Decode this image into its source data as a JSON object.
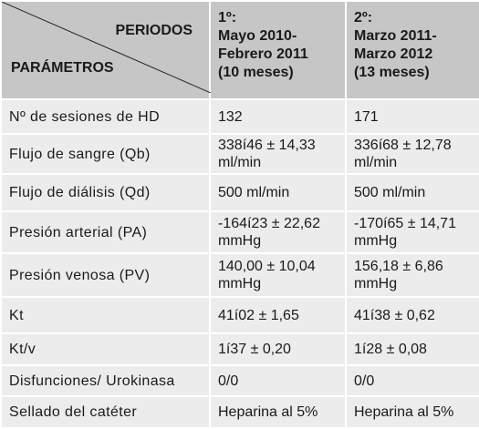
{
  "table": {
    "header": {
      "periods_label": "PERIODOS",
      "params_label": "PARÁMETROS",
      "columns": [
        [
          "1º:",
          "Mayo 2010-",
          "Febrero 2011",
          "(10 meses)"
        ],
        [
          "2º:",
          "Marzo 2011-",
          "Marzo 2012",
          "(13 meses)"
        ]
      ]
    },
    "rows": [
      [
        "Nº de sesiones de HD",
        "132",
        "171"
      ],
      [
        "Flujo de sangre (Qb)",
        "338í46 ± 14,33 ml/min",
        "336í68 ± 12,78 ml/min"
      ],
      [
        "Flujo de diálisis (Qd)",
        "500 ml/min",
        "500 ml/min"
      ],
      [
        "Presión arterial (PA)",
        "-164í23 ± 22,62 mmHg",
        "-170í65 ± 14,71 mmHg"
      ],
      [
        "Presión venosa (PV)",
        "140,00 ± 10,04 mmHg",
        "156,18 ± 6,86 mmHg"
      ],
      [
        "Kt",
        "41í02 ± 1,65",
        "41í38 ± 0,62"
      ],
      [
        "Kt/v",
        "1í37 ± 0,20",
        "1í28 ± 0,08"
      ],
      [
        "Disfunciones/ Urokinasa",
        "0/0",
        "0/0"
      ],
      [
        "Sellado del catéter",
        "Heparina al 5%",
        "Heparina al 5%"
      ]
    ]
  }
}
